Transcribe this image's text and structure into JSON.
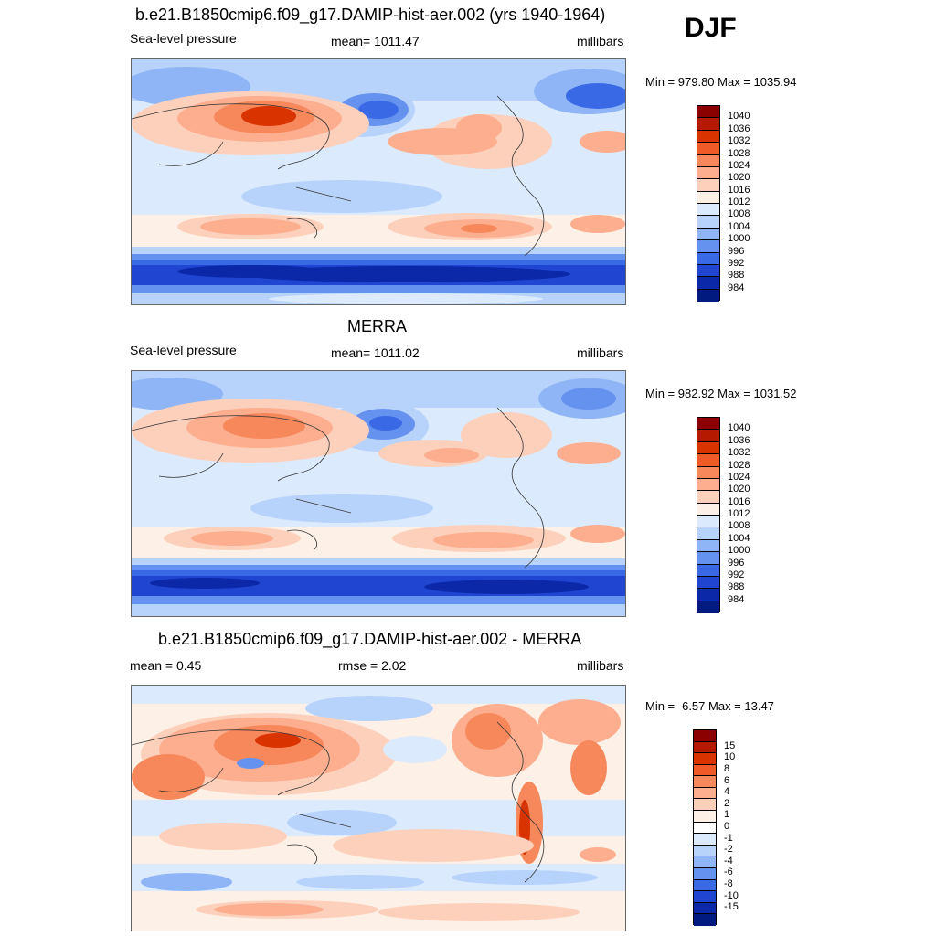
{
  "season": "DJF",
  "panels": [
    {
      "title": "b.e21.B1850cmip6.f09_g17.DAMIP-hist-aer.002 (yrs 1940-1964)",
      "left_label": "Sea-level pressure",
      "center_label": "mean= 1011.47",
      "right_label": "millibars",
      "minmax": "Min = 979.80 Max = 1035.94",
      "colorbar": {
        "labels": [
          "1040",
          "1036",
          "1032",
          "1028",
          "1024",
          "1020",
          "1016",
          "1012",
          "1008",
          "1004",
          "1000",
          "996",
          "992",
          "988",
          "984"
        ],
        "colors": [
          "#8b0000",
          "#b51a00",
          "#d93300",
          "#f05a28",
          "#f7885c",
          "#fcae8f",
          "#fdd0bc",
          "#fdf0e6",
          "#dbeafd",
          "#b8d3fb",
          "#8fb5f6",
          "#6591ef",
          "#3a69e6",
          "#1f45d1",
          "#0a28a8",
          "#001a80"
        ]
      }
    },
    {
      "title": "MERRA",
      "left_label": "Sea-level pressure",
      "center_label": "mean= 1011.02",
      "right_label": "millibars",
      "minmax": "Min = 982.92 Max = 1031.52",
      "colorbar": {
        "labels": [
          "1040",
          "1036",
          "1032",
          "1028",
          "1024",
          "1020",
          "1016",
          "1012",
          "1008",
          "1004",
          "1000",
          "996",
          "992",
          "988",
          "984"
        ],
        "colors": [
          "#8b0000",
          "#b51a00",
          "#d93300",
          "#f05a28",
          "#f7885c",
          "#fcae8f",
          "#fdd0bc",
          "#fdf0e6",
          "#dbeafd",
          "#b8d3fb",
          "#8fb5f6",
          "#6591ef",
          "#3a69e6",
          "#1f45d1",
          "#0a28a8",
          "#001a80"
        ]
      }
    },
    {
      "title": "b.e21.B1850cmip6.f09_g17.DAMIP-hist-aer.002 - MERRA",
      "left_label": "mean =   0.45",
      "center_label": "rmse =   2.02",
      "right_label": "millibars",
      "minmax": "Min =  -6.57 Max =  13.47",
      "colorbar": {
        "labels": [
          "15",
          "10",
          "8",
          "6",
          "4",
          "2",
          "1",
          "0",
          "-1",
          "-2",
          "-4",
          "-6",
          "-8",
          "-10",
          "-15"
        ],
        "colors": [
          "#8b0000",
          "#b51a00",
          "#d93300",
          "#f05a28",
          "#f7885c",
          "#fcae8f",
          "#fdd0bc",
          "#fdf0e6",
          "#ffffff",
          "#dbeafd",
          "#b8d3fb",
          "#8fb5f6",
          "#6591ef",
          "#3a69e6",
          "#1f45d1",
          "#0a28a8",
          "#001a80"
        ]
      }
    }
  ]
}
